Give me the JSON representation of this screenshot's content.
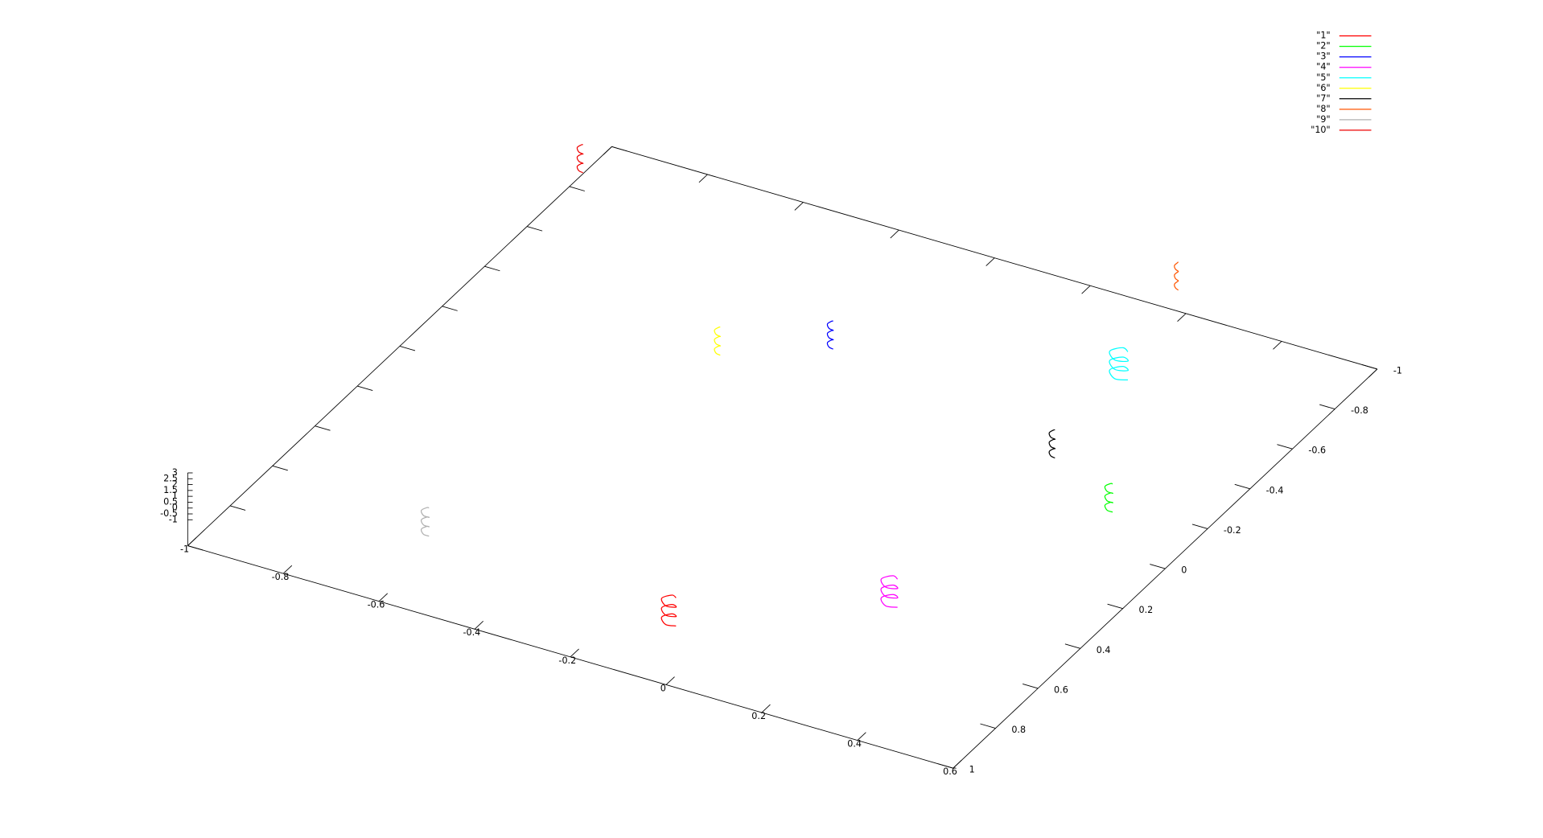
{
  "chart_data": {
    "type": "line3d",
    "xlim": [
      -1,
      0.6
    ],
    "ylim": [
      -1,
      1
    ],
    "zlim": [
      -1,
      3
    ],
    "xticks": [
      -1,
      -0.8,
      -0.6,
      -0.4,
      -0.2,
      0,
      0.2,
      0.4,
      0.6
    ],
    "yticks": [
      -1,
      -0.8,
      -0.6,
      -0.4,
      -0.2,
      0,
      0.2,
      0.4,
      0.6,
      0.8,
      1
    ],
    "zticks": [
      -1,
      -0.5,
      0,
      0.5,
      1,
      1.5,
      2,
      2.5,
      3
    ],
    "legend": "top-right",
    "series": [
      {
        "name": "\"1\"",
        "color": "#ff0000",
        "x": [
          -0.02,
          -0.035,
          -0.05,
          -0.035,
          -0.02,
          -0.035,
          -0.05,
          -0.035,
          -0.02,
          -0.035,
          -0.05,
          -0.035,
          -0.02
        ],
        "y": [
          0.908,
          0.923,
          0.908,
          0.893,
          0.908,
          0.923,
          0.908,
          0.893,
          0.908,
          0.923,
          0.908,
          0.893,
          0.908
        ],
        "z": [
          0,
          0.2,
          0.4,
          0.6,
          0.8,
          1,
          1.2,
          1.4,
          1.6,
          1.8,
          2,
          2.2,
          2.4
        ]
      },
      {
        "name": "\"2\"",
        "color": "#00ff00",
        "x": [
          0.484,
          0.476,
          0.468,
          0.476,
          0.484,
          0.476,
          0.468,
          0.476,
          0.484,
          0.476,
          0.468,
          0.476,
          0.484
        ],
        "y": [
          -0.014,
          -0.006,
          -0.014,
          -0.022,
          -0.014,
          -0.006,
          -0.014,
          -0.022,
          -0.014,
          -0.006,
          -0.014,
          -0.022,
          -0.014
        ],
        "z": [
          0,
          0.2,
          0.4,
          0.6,
          0.8,
          1,
          1.2,
          1.4,
          1.6,
          1.8,
          2,
          2.2,
          2.4
        ]
      },
      {
        "name": "\"3\"",
        "color": "#0000ff",
        "x": [
          -0.239,
          -0.245,
          -0.251,
          -0.245,
          -0.239,
          -0.245,
          -0.251,
          -0.245,
          -0.239,
          -0.245,
          -0.251,
          -0.245,
          -0.239
        ],
        "y": [
          -0.327,
          -0.321,
          -0.327,
          -0.333,
          -0.327,
          -0.321,
          -0.327,
          -0.333,
          -0.327,
          -0.321,
          -0.327,
          -0.333,
          -0.327
        ],
        "z": [
          0,
          0.2,
          0.4,
          0.6,
          0.8,
          1,
          1.2,
          1.4,
          1.6,
          1.8,
          2,
          2.2,
          2.4
        ]
      },
      {
        "name": "\"4\"",
        "color": "#ff00ff",
        "x": [
          0.302,
          0.285,
          0.268,
          0.285,
          0.302,
          0.285,
          0.268,
          0.285,
          0.302,
          0.285,
          0.268,
          0.285,
          0.302
        ],
        "y": [
          0.59,
          0.607,
          0.59,
          0.573,
          0.59,
          0.607,
          0.59,
          0.573,
          0.59,
          0.607,
          0.59,
          0.573,
          0.59
        ],
        "z": [
          0,
          0.2,
          0.4,
          0.6,
          0.8,
          1,
          1.2,
          1.4,
          1.6,
          1.8,
          2,
          2.2,
          2.4
        ]
      },
      {
        "name": "\"5\"",
        "color": "#00ffff",
        "x": [
          0.284,
          0.265,
          0.246,
          0.265,
          0.284,
          0.265,
          0.246,
          0.265,
          0.284,
          0.265,
          0.246,
          0.265,
          0.284
        ],
        "y": [
          -0.537,
          -0.518,
          -0.537,
          -0.556,
          -0.537,
          -0.518,
          -0.537,
          -0.556,
          -0.537,
          -0.518,
          -0.537,
          -0.556,
          -0.537
        ],
        "z": [
          0,
          0.2,
          0.4,
          0.6,
          0.8,
          1,
          1.2,
          1.4,
          1.6,
          1.8,
          2,
          2.2,
          2.4
        ]
      },
      {
        "name": "\"6\"",
        "color": "#ffff00",
        "x": [
          -0.409,
          -0.415,
          -0.421,
          -0.415,
          -0.409,
          -0.415,
          -0.421,
          -0.415,
          -0.409,
          -0.415,
          -0.421,
          -0.415,
          -0.409
        ],
        "y": [
          -0.178,
          -0.172,
          -0.178,
          -0.184,
          -0.178,
          -0.172,
          -0.178,
          -0.184,
          -0.178,
          -0.172,
          -0.178,
          -0.184,
          -0.178
        ],
        "z": [
          0,
          0.2,
          0.4,
          0.6,
          0.8,
          1,
          1.2,
          1.4,
          1.6,
          1.8,
          2,
          2.2,
          2.4
        ]
      },
      {
        "name": "\"7\"",
        "color": "#000000",
        "x": [
          0.3,
          0.294,
          0.288,
          0.294,
          0.3,
          0.294,
          0.288,
          0.294,
          0.3,
          0.294,
          0.288,
          0.294,
          0.3
        ],
        "y": [
          -0.157,
          -0.151,
          -0.157,
          -0.163,
          -0.157,
          -0.151,
          -0.157,
          -0.163,
          -0.157,
          -0.151,
          -0.157,
          -0.163,
          -0.157
        ],
        "z": [
          0,
          0.2,
          0.4,
          0.6,
          0.8,
          1,
          1.2,
          1.4,
          1.6,
          1.8,
          2,
          2.2,
          2.4
        ]
      },
      {
        "name": "\"8\"",
        "color": "#ff5500",
        "x": [
          0.212,
          0.208,
          0.204,
          0.208,
          0.212,
          0.208,
          0.204,
          0.208,
          0.212,
          0.208,
          0.204,
          0.208,
          0.212
        ],
        "y": [
          -0.937,
          -0.933,
          -0.937,
          -0.941,
          -0.937,
          -0.933,
          -0.937,
          -0.941,
          -0.937,
          -0.933,
          -0.937,
          -0.941,
          -0.937
        ],
        "z": [
          0,
          0.2,
          0.4,
          0.6,
          0.8,
          1,
          1.2,
          1.4,
          1.6,
          1.8,
          2,
          2.2,
          2.4
        ]
      },
      {
        "name": "\"9\"",
        "color": "#b0b0b0",
        "x": [
          -0.567,
          -0.575,
          -0.583,
          -0.575,
          -0.567,
          -0.575,
          -0.583,
          -0.575,
          -0.567,
          -0.575,
          -0.583,
          -0.575,
          -0.567
        ],
        "y": [
          0.839,
          0.847,
          0.839,
          0.831,
          0.839,
          0.847,
          0.839,
          0.831,
          0.839,
          0.847,
          0.839,
          0.831,
          0.839
        ],
        "z": [
          0,
          0.2,
          0.4,
          0.6,
          0.8,
          1,
          1.2,
          1.4,
          1.6,
          1.8,
          2,
          2.2,
          2.4
        ]
      },
      {
        "name": "\"10\"",
        "color": "#ee0000",
        "x": [
          -0.938,
          -0.944,
          -0.95,
          -0.944,
          -0.938,
          -0.944,
          -0.95,
          -0.944,
          -0.938,
          -0.944,
          -0.95,
          -0.944,
          -0.938
        ],
        "y": [
          -0.724,
          -0.718,
          -0.724,
          -0.73,
          -0.724,
          -0.718,
          -0.724,
          -0.73,
          -0.724,
          -0.718,
          -0.724,
          -0.73,
          -0.724
        ],
        "z": [
          0,
          0.2,
          0.4,
          0.6,
          0.8,
          1,
          1.2,
          1.4,
          1.6,
          1.8,
          2,
          2.2,
          2.4
        ]
      }
    ]
  }
}
